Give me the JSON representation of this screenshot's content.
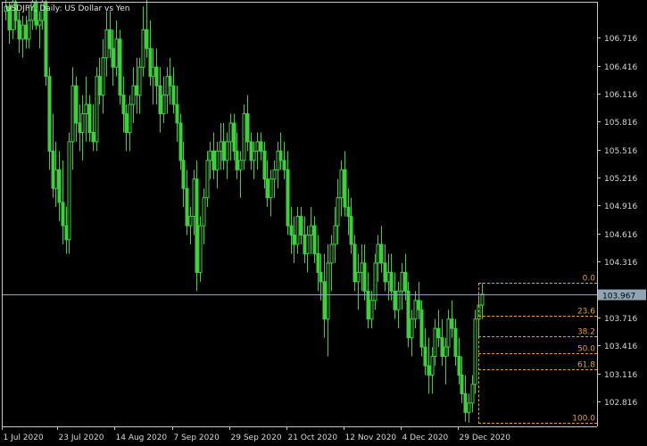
{
  "header": {
    "title": "USDJPY, Daily:  US Dollar vs Yen"
  },
  "colors": {
    "background": "#000000",
    "candle": "#3cd03c",
    "fib": "#e0a030",
    "grid_axis": "#c8c8c8",
    "current_line": "#8fa5b5",
    "price_tag_bg": "#8fa5b5"
  },
  "chart_data": {
    "type": "candlestick",
    "symbol": "USDJPY",
    "timeframe": "Daily",
    "ylim": [
      102.55,
      107.1
    ],
    "y_ticks": [
      "106.716",
      "106.416",
      "106.116",
      "105.816",
      "105.516",
      "105.216",
      "104.916",
      "104.616",
      "104.316",
      "104.016",
      "103.716",
      "103.416",
      "103.116",
      "102.816"
    ],
    "x_ticks": [
      "1 Jul 2020",
      "23 Jul 2020",
      "14 Aug 2020",
      "7 Sep 2020",
      "29 Sep 2020",
      "21 Oct 2020",
      "12 Nov 2020",
      "4 Dec 2020",
      "29 Dec 2020"
    ],
    "current_price": "103.967",
    "fibonacci": {
      "high": 104.086,
      "low": 102.59,
      "levels": [
        {
          "label": "0.0",
          "value": 104.086
        },
        {
          "label": "23.6",
          "value": 103.733
        },
        {
          "label": "38.2",
          "value": 103.515
        },
        {
          "label": "50.0",
          "value": 103.338
        },
        {
          "label": "61.8",
          "value": 103.161
        },
        {
          "label": "100.0",
          "value": 102.59
        }
      ]
    },
    "ohlc": [
      [
        107.0,
        107.2,
        106.9,
        107.05
      ],
      [
        107.05,
        107.1,
        106.65,
        106.8
      ],
      [
        106.8,
        107.3,
        106.7,
        107.1
      ],
      [
        107.1,
        107.3,
        106.8,
        106.9
      ],
      [
        106.9,
        107.0,
        106.55,
        106.7
      ],
      [
        106.7,
        106.95,
        106.5,
        106.85
      ],
      [
        106.85,
        106.95,
        106.6,
        106.7
      ],
      [
        106.7,
        107.05,
        106.6,
        106.9
      ],
      [
        106.9,
        107.3,
        106.8,
        107.1
      ],
      [
        107.1,
        107.2,
        106.8,
        106.85
      ],
      [
        106.85,
        107.0,
        106.6,
        106.9
      ],
      [
        106.9,
        107.3,
        106.8,
        107.1
      ],
      [
        107.1,
        107.2,
        106.2,
        106.3
      ],
      [
        106.3,
        106.4,
        105.3,
        105.5
      ],
      [
        105.5,
        105.9,
        105.0,
        105.1
      ],
      [
        105.1,
        105.6,
        104.9,
        105.3
      ],
      [
        105.3,
        105.5,
        104.75,
        104.95
      ],
      [
        104.95,
        105.4,
        104.5,
        104.7
      ],
      [
        104.7,
        104.9,
        104.4,
        104.55
      ],
      [
        104.55,
        105.7,
        104.4,
        105.6
      ],
      [
        105.6,
        106.4,
        105.3,
        106.2
      ],
      [
        106.2,
        106.3,
        105.6,
        105.8
      ],
      [
        105.8,
        106.0,
        105.5,
        105.7
      ],
      [
        105.7,
        106.1,
        105.4,
        105.9
      ],
      [
        105.9,
        106.3,
        105.6,
        106.0
      ],
      [
        106.0,
        106.1,
        105.6,
        105.7
      ],
      [
        105.7,
        106.0,
        105.5,
        105.6
      ],
      [
        105.6,
        106.4,
        105.5,
        106.3
      ],
      [
        106.3,
        106.5,
        106.0,
        106.1
      ],
      [
        106.1,
        106.7,
        105.9,
        106.5
      ],
      [
        106.5,
        107.0,
        106.3,
        106.8
      ],
      [
        106.8,
        107.0,
        106.5,
        106.6
      ],
      [
        106.6,
        106.8,
        106.2,
        106.4
      ],
      [
        106.4,
        106.9,
        106.3,
        106.7
      ],
      [
        106.7,
        106.8,
        106.0,
        106.1
      ],
      [
        106.1,
        106.3,
        105.7,
        105.9
      ],
      [
        105.9,
        106.0,
        105.5,
        105.7
      ],
      [
        105.7,
        106.1,
        105.5,
        106.0
      ],
      [
        106.0,
        106.4,
        105.8,
        106.2
      ],
      [
        106.2,
        106.5,
        105.9,
        106.1
      ],
      [
        106.1,
        106.5,
        105.9,
        106.4
      ],
      [
        106.4,
        107.05,
        106.3,
        106.8
      ],
      [
        106.8,
        107.2,
        106.5,
        106.6
      ],
      [
        106.6,
        106.9,
        106.2,
        106.3
      ],
      [
        106.3,
        106.6,
        106.0,
        106.4
      ],
      [
        106.4,
        106.6,
        106.0,
        106.2
      ],
      [
        106.2,
        106.4,
        105.7,
        105.9
      ],
      [
        105.9,
        106.3,
        105.8,
        106.1
      ],
      [
        106.1,
        106.4,
        105.9,
        106.3
      ],
      [
        106.3,
        106.5,
        106.0,
        106.2
      ],
      [
        106.2,
        106.4,
        105.9,
        106.0
      ],
      [
        106.0,
        106.2,
        105.6,
        105.8
      ],
      [
        105.8,
        105.9,
        105.3,
        105.4
      ],
      [
        105.4,
        105.6,
        104.9,
        105.1
      ],
      [
        105.1,
        105.3,
        104.6,
        104.7
      ],
      [
        104.7,
        104.9,
        104.5,
        104.8
      ],
      [
        104.8,
        105.3,
        104.6,
        105.2
      ],
      [
        105.2,
        105.4,
        104.0,
        104.2
      ],
      [
        104.2,
        104.8,
        104.1,
        104.7
      ],
      [
        104.7,
        105.1,
        104.5,
        105.0
      ],
      [
        105.0,
        105.5,
        104.9,
        105.4
      ],
      [
        105.4,
        105.6,
        105.2,
        105.5
      ],
      [
        105.5,
        105.7,
        105.2,
        105.3
      ],
      [
        105.3,
        105.6,
        105.1,
        105.5
      ],
      [
        105.5,
        105.8,
        105.3,
        105.6
      ],
      [
        105.6,
        105.8,
        105.3,
        105.4
      ],
      [
        105.4,
        105.7,
        105.2,
        105.6
      ],
      [
        105.6,
        105.9,
        105.4,
        105.8
      ],
      [
        105.8,
        105.9,
        105.4,
        105.5
      ],
      [
        105.5,
        105.7,
        105.2,
        105.3
      ],
      [
        105.3,
        105.5,
        105.0,
        105.4
      ],
      [
        105.4,
        106.0,
        105.3,
        105.9
      ],
      [
        105.9,
        106.1,
        105.5,
        105.6
      ],
      [
        105.6,
        105.7,
        105.3,
        105.4
      ],
      [
        105.4,
        105.6,
        105.2,
        105.5
      ],
      [
        105.5,
        105.7,
        105.3,
        105.6
      ],
      [
        105.6,
        105.7,
        105.4,
        105.5
      ],
      [
        105.5,
        105.6,
        105.1,
        105.2
      ],
      [
        105.2,
        105.4,
        104.9,
        105.0
      ],
      [
        105.0,
        105.3,
        104.8,
        105.2
      ],
      [
        105.2,
        105.4,
        105.0,
        105.3
      ],
      [
        105.3,
        105.6,
        105.1,
        105.5
      ],
      [
        105.5,
        105.7,
        105.3,
        105.4
      ],
      [
        105.4,
        105.6,
        105.2,
        105.3
      ],
      [
        105.3,
        105.5,
        104.6,
        104.7
      ],
      [
        104.7,
        104.9,
        104.4,
        104.6
      ],
      [
        104.6,
        104.8,
        104.3,
        104.5
      ],
      [
        104.5,
        104.9,
        104.4,
        104.8
      ],
      [
        104.8,
        104.9,
        104.5,
        104.6
      ],
      [
        104.6,
        104.8,
        104.3,
        104.4
      ],
      [
        104.4,
        104.7,
        104.2,
        104.6
      ],
      [
        104.6,
        104.9,
        104.4,
        104.7
      ],
      [
        104.7,
        104.8,
        104.3,
        104.4
      ],
      [
        104.4,
        104.6,
        104.0,
        104.2
      ],
      [
        104.2,
        104.4,
        103.9,
        104.1
      ],
      [
        104.1,
        104.4,
        103.5,
        103.7
      ],
      [
        103.7,
        104.5,
        103.3,
        104.3
      ],
      [
        104.3,
        104.6,
        104.0,
        104.5
      ],
      [
        104.5,
        104.9,
        104.3,
        104.7
      ],
      [
        104.7,
        105.2,
        104.5,
        105.0
      ],
      [
        105.0,
        105.4,
        104.8,
        105.3
      ],
      [
        105.3,
        105.5,
        104.8,
        104.9
      ],
      [
        104.9,
        105.1,
        104.6,
        104.8
      ],
      [
        104.8,
        105.0,
        104.4,
        104.5
      ],
      [
        104.5,
        104.6,
        104.0,
        104.1
      ],
      [
        104.1,
        104.4,
        103.8,
        104.2
      ],
      [
        104.2,
        104.5,
        104.0,
        104.3
      ],
      [
        104.3,
        104.5,
        103.9,
        104.0
      ],
      [
        104.0,
        104.2,
        103.6,
        103.7
      ],
      [
        103.7,
        104.0,
        103.6,
        103.9
      ],
      [
        103.9,
        104.4,
        103.8,
        104.3
      ],
      [
        104.3,
        104.6,
        104.1,
        104.5
      ],
      [
        104.5,
        104.7,
        104.2,
        104.3
      ],
      [
        104.3,
        104.5,
        104.0,
        104.1
      ],
      [
        104.1,
        104.4,
        103.9,
        104.2
      ],
      [
        104.2,
        104.4,
        103.9,
        104.0
      ],
      [
        104.0,
        104.2,
        103.7,
        103.8
      ],
      [
        103.8,
        104.1,
        103.6,
        104.0
      ],
      [
        104.0,
        104.3,
        103.8,
        104.2
      ],
      [
        104.2,
        104.4,
        103.9,
        104.0
      ],
      [
        104.0,
        104.1,
        103.4,
        103.5
      ],
      [
        103.5,
        103.8,
        103.3,
        103.7
      ],
      [
        103.7,
        104.0,
        103.6,
        103.9
      ],
      [
        103.9,
        104.1,
        103.7,
        103.8
      ],
      [
        103.8,
        103.9,
        103.3,
        103.4
      ],
      [
        103.4,
        103.6,
        103.1,
        103.2
      ],
      [
        103.2,
        103.5,
        102.9,
        103.1
      ],
      [
        103.1,
        103.4,
        102.9,
        103.3
      ],
      [
        103.3,
        103.7,
        103.2,
        103.6
      ],
      [
        103.6,
        103.8,
        103.4,
        103.5
      ],
      [
        103.5,
        103.7,
        103.2,
        103.3
      ],
      [
        103.3,
        103.5,
        103.0,
        103.4
      ],
      [
        103.4,
        103.8,
        103.3,
        103.7
      ],
      [
        103.7,
        103.9,
        103.5,
        103.6
      ],
      [
        103.6,
        103.7,
        103.2,
        103.3
      ],
      [
        103.3,
        103.5,
        103.0,
        103.1
      ],
      [
        103.1,
        103.3,
        102.8,
        102.9
      ],
      [
        102.9,
        103.1,
        102.6,
        102.7
      ],
      [
        102.7,
        102.9,
        102.59,
        102.8
      ],
      [
        102.8,
        103.1,
        102.7,
        103.0
      ],
      [
        103.0,
        103.8,
        102.9,
        103.7
      ],
      [
        103.7,
        103.95,
        103.5,
        103.85
      ],
      [
        103.85,
        104.086,
        103.7,
        103.967
      ]
    ]
  }
}
